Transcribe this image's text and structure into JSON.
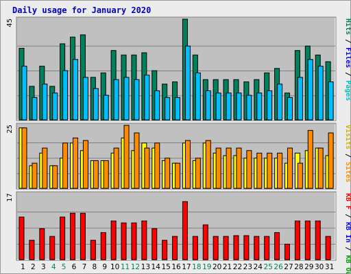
{
  "chart_data": {
    "title": "Daily usage for January 2020",
    "type": "bar",
    "categories": [
      "1",
      "2",
      "3",
      "4",
      "5",
      "6",
      "7",
      "8",
      "9",
      "10",
      "11",
      "12",
      "13",
      "14",
      "15",
      "16",
      "17",
      "18",
      "19",
      "20",
      "21",
      "22",
      "23",
      "24",
      "25",
      "26",
      "27",
      "28",
      "29",
      "30",
      "31"
    ],
    "weekend_days": [
      "4",
      "5",
      "11",
      "12",
      "18",
      "19",
      "25",
      "26"
    ],
    "panels": [
      {
        "name": "hits-files-pages",
        "ymax": 45,
        "ymax_label": "45",
        "series": [
          {
            "name": "Hits",
            "color": "#00805C",
            "values": [
              32,
              15,
              24,
              15,
              34,
              37,
              38,
              19,
              21,
              31,
              29,
              29,
              30,
              22,
              16,
              17,
              45,
              29,
              18,
              18,
              18,
              18,
              17,
              18,
              21,
              23,
              12,
              31,
              33,
              29,
              26
            ]
          },
          {
            "name": "Files",
            "color": "#00BFFF",
            "values": [
              24,
              10,
              16,
              12,
              22,
              27,
              19,
              14,
              11,
              18,
              19,
              18,
              20,
              13,
              10,
              10,
              33,
              21,
              13,
              12,
              12,
              12,
              11,
              12,
              13,
              16,
              10,
              19,
              27,
              24,
              17
            ]
          }
        ],
        "legend": [
          {
            "text": "Hits",
            "color": "#00805C"
          },
          {
            "text": " / ",
            "color": "#000000"
          },
          {
            "text": "Files",
            "color": "#0000FF"
          },
          {
            "text": " / ",
            "color": "#000000"
          },
          {
            "text": "Pages",
            "color": "#00C0C0"
          }
        ]
      },
      {
        "name": "visits-sites",
        "ymax": 25,
        "ymax_label": "25",
        "series": [
          {
            "name": "Visits",
            "color": "#FFFF00",
            "values": [
              24,
              9,
              14,
              9,
              12,
              18,
              15,
              11,
              11,
              14,
              20,
              15,
              18,
              16,
              11,
              10,
              18,
              11,
              18,
              14,
              13,
              13,
              12,
              12,
              12,
              12,
              10,
              14,
              15,
              16,
              13
            ]
          },
          {
            "name": "Sites",
            "color": "#FF8C00",
            "values": [
              24,
              10,
              16,
              9,
              18,
              20,
              19,
              11,
              11,
              16,
              25,
              22,
              16,
              18,
              12,
              10,
              19,
              12,
              19,
              16,
              16,
              16,
              15,
              14,
              14,
              14,
              16,
              10,
              23,
              16,
              22
            ]
          }
        ],
        "legend": [
          {
            "text": "Visits",
            "color": "#D0B000"
          },
          {
            "text": " / ",
            "color": "#000000"
          },
          {
            "text": "Sites",
            "color": "#FF8C00"
          }
        ]
      },
      {
        "name": "kbytes",
        "ymax": 17,
        "ymax_label": "17",
        "series": [
          {
            "name": "KBytes",
            "color": "#FF0000",
            "values": [
              11,
              5,
              8,
              6,
              11,
              12,
              12,
              5,
              7,
              10,
              9.5,
              9.5,
              10,
              8,
              5,
              6,
              15,
              6,
              9,
              6,
              6,
              6.2,
              6.2,
              6,
              6,
              7,
              4,
              10,
              10,
              10,
              6
            ]
          }
        ],
        "legend": [
          {
            "text": "KB F",
            "color": "#FF0000"
          },
          {
            "text": " / ",
            "color": "#000000"
          },
          {
            "text": "KB In",
            "color": "#0000FF"
          },
          {
            "text": " / ",
            "color": "#000000"
          },
          {
            "text": "KB Out",
            "color": "#00A000"
          }
        ]
      }
    ]
  }
}
